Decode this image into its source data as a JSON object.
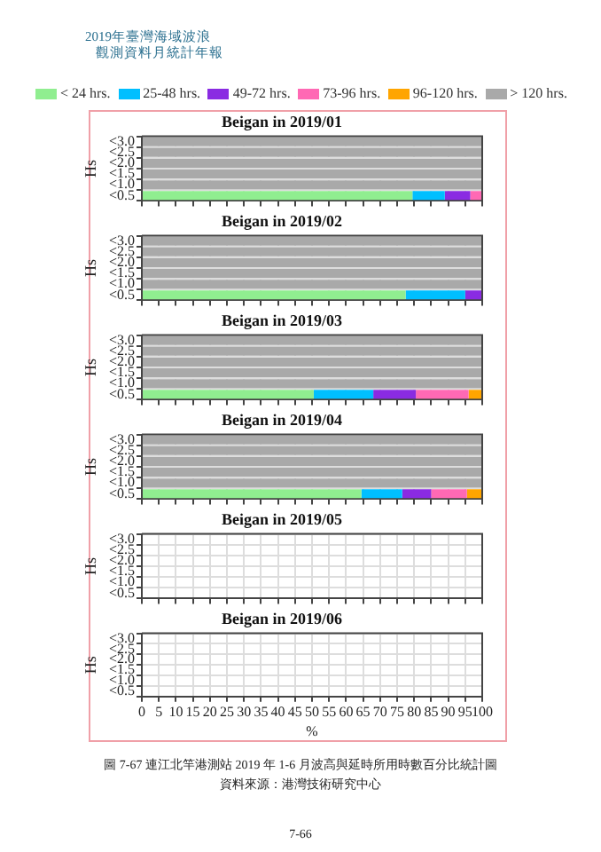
{
  "chart_data": [
    {
      "type": "bar",
      "orientation": "horizontal",
      "stacked": true,
      "title": "Beigan in 2019/01",
      "ylabel": "Hs",
      "categories": [
        "<3.0",
        "<2.5",
        "<2.0",
        "<1.5",
        "<1.0",
        "<0.5"
      ],
      "xlim": [
        0,
        100
      ],
      "xticks": [
        0,
        5,
        10,
        15,
        20,
        25,
        30,
        35,
        40,
        45,
        50,
        55,
        60,
        65,
        70,
        75,
        80,
        85,
        90,
        95,
        100
      ],
      "grid": true,
      "tick_labels": "y",
      "legend": "top",
      "annotations": [
        "2019年臺灣海域波浪",
        "觀測資料月統計年報"
      ],
      "series": [
        {
          "name": "< 24 hrs.",
          "color": "#90ee90",
          "values": [
            null,
            null,
            null,
            null,
            null,
            79.5
          ]
        },
        {
          "name": "25-48 hrs.",
          "color": "#00bfff",
          "values": [
            null,
            null,
            null,
            null,
            null,
            9.5
          ]
        },
        {
          "name": "49-72 hrs.",
          "color": "#8a2be2",
          "values": [
            null,
            null,
            null,
            null,
            null,
            7.5
          ]
        },
        {
          "name": "73-96 hrs.",
          "color": "#ff69b4",
          "values": [
            null,
            null,
            null,
            null,
            null,
            3.5
          ]
        },
        {
          "name": "96-120 hrs.",
          "color": "#ffa500",
          "values": [
            null,
            null,
            null,
            null,
            null,
            null
          ]
        },
        {
          "name": "> 120 hrs.",
          "color": "#a9a9a9",
          "values": [
            100,
            100,
            100,
            100,
            100,
            null
          ]
        }
      ]
    },
    {
      "type": "bar",
      "orientation": "horizontal",
      "stacked": true,
      "title": "Beigan in 2019/02",
      "ylabel": "Hs",
      "categories": [
        "<3.0",
        "<2.5",
        "<2.0",
        "<1.5",
        "<1.0",
        "<0.5"
      ],
      "xlim": [
        0,
        100
      ],
      "xticks": [
        0,
        5,
        10,
        15,
        20,
        25,
        30,
        35,
        40,
        45,
        50,
        55,
        60,
        65,
        70,
        75,
        80,
        85,
        90,
        95,
        100
      ],
      "grid": true,
      "tick_labels": "y",
      "series": [
        {
          "color": "#90ee90",
          "values": [
            null,
            null,
            null,
            null,
            null,
            77.5
          ]
        },
        {
          "color": "#00bfff",
          "values": [
            null,
            null,
            null,
            null,
            null,
            17.5
          ]
        },
        {
          "color": "#8a2be2",
          "values": [
            null,
            null,
            null,
            null,
            null,
            5
          ]
        },
        {
          "color": "#ff69b4",
          "values": [
            null,
            null,
            null,
            null,
            null,
            null
          ]
        },
        {
          "color": "#ffa500",
          "values": [
            null,
            null,
            null,
            null,
            null,
            null
          ]
        },
        {
          "color": "#a9a9a9",
          "values": [
            100,
            100,
            100,
            100,
            100,
            null
          ]
        }
      ]
    },
    {
      "type": "bar",
      "orientation": "horizontal",
      "stacked": true,
      "title": "Beigan in 2019/03",
      "ylabel": "Hs",
      "categories": [
        "<3.0",
        "<2.5",
        "<2.0",
        "<1.5",
        "<1.0",
        "<0.5"
      ],
      "xlim": [
        0,
        100
      ],
      "xticks": [
        0,
        5,
        10,
        15,
        20,
        25,
        30,
        35,
        40,
        45,
        50,
        55,
        60,
        65,
        70,
        75,
        80,
        85,
        90,
        95,
        100
      ],
      "grid": true,
      "tick_labels": "y",
      "series": [
        {
          "color": "#90ee90",
          "values": [
            null,
            null,
            null,
            null,
            null,
            50.5
          ]
        },
        {
          "color": "#00bfff",
          "values": [
            null,
            null,
            null,
            null,
            null,
            17.5
          ]
        },
        {
          "color": "#8a2be2",
          "values": [
            null,
            null,
            null,
            null,
            null,
            12.5
          ]
        },
        {
          "color": "#ff69b4",
          "values": [
            null,
            null,
            null,
            null,
            null,
            15.5
          ]
        },
        {
          "color": "#ffa500",
          "values": [
            null,
            null,
            null,
            null,
            null,
            4
          ]
        },
        {
          "color": "#a9a9a9",
          "values": [
            100,
            100,
            100,
            100,
            100,
            null
          ]
        }
      ]
    },
    {
      "type": "bar",
      "orientation": "horizontal",
      "stacked": true,
      "title": "Beigan in 2019/04",
      "ylabel": "Hs",
      "categories": [
        "<3.0",
        "<2.5",
        "<2.0",
        "<1.5",
        "<1.0",
        "<0.5"
      ],
      "xlim": [
        0,
        100
      ],
      "xticks": [
        0,
        5,
        10,
        15,
        20,
        25,
        30,
        35,
        40,
        45,
        50,
        55,
        60,
        65,
        70,
        75,
        80,
        85,
        90,
        95,
        100
      ],
      "grid": true,
      "tick_labels": "y",
      "series": [
        {
          "color": "#90ee90",
          "values": [
            null,
            null,
            null,
            null,
            null,
            64.5
          ]
        },
        {
          "color": "#00bfff",
          "values": [
            null,
            null,
            null,
            null,
            null,
            12
          ]
        },
        {
          "color": "#8a2be2",
          "values": [
            null,
            null,
            null,
            null,
            null,
            8.5
          ]
        },
        {
          "color": "#ff69b4",
          "values": [
            null,
            null,
            null,
            null,
            null,
            10.5
          ]
        },
        {
          "color": "#ffa500",
          "values": [
            null,
            null,
            null,
            null,
            null,
            4.5
          ]
        },
        {
          "color": "#a9a9a9",
          "values": [
            100,
            100,
            100,
            100,
            100,
            null
          ]
        }
      ]
    },
    {
      "type": "bar",
      "orientation": "horizontal",
      "stacked": true,
      "title": "Beigan in 2019/05",
      "ylabel": "Hs",
      "categories": [
        "<3.0",
        "<2.5",
        "<2.0",
        "<1.5",
        "<1.0",
        "<0.5"
      ],
      "xlim": [
        0,
        100
      ],
      "xticks": [
        0,
        5,
        10,
        15,
        20,
        25,
        30,
        35,
        40,
        45,
        50,
        55,
        60,
        65,
        70,
        75,
        80,
        85,
        90,
        95,
        100
      ],
      "grid": true,
      "tick_labels": "y"
    },
    {
      "type": "bar",
      "orientation": "horizontal",
      "stacked": true,
      "title": "Beigan in 2019/06",
      "ylabel": "Hs",
      "xlabel": "%",
      "categories": [
        "<3.0",
        "<2.5",
        "<2.0",
        "<1.5",
        "<1.0",
        "<0.5"
      ],
      "xlim": [
        0,
        100
      ],
      "xticks": [
        0,
        5,
        10,
        15,
        20,
        25,
        30,
        35,
        40,
        45,
        50,
        55,
        60,
        65,
        70,
        75,
        80,
        85,
        90,
        95,
        100
      ],
      "grid": true,
      "annotations": [
        "圖 7-67 連江北竿港測站 2019 年 1-6 月波高與延時所用時數百分比統計圖",
        "資料來源：港灣技術研究中心",
        "7-66"
      ]
    }
  ]
}
